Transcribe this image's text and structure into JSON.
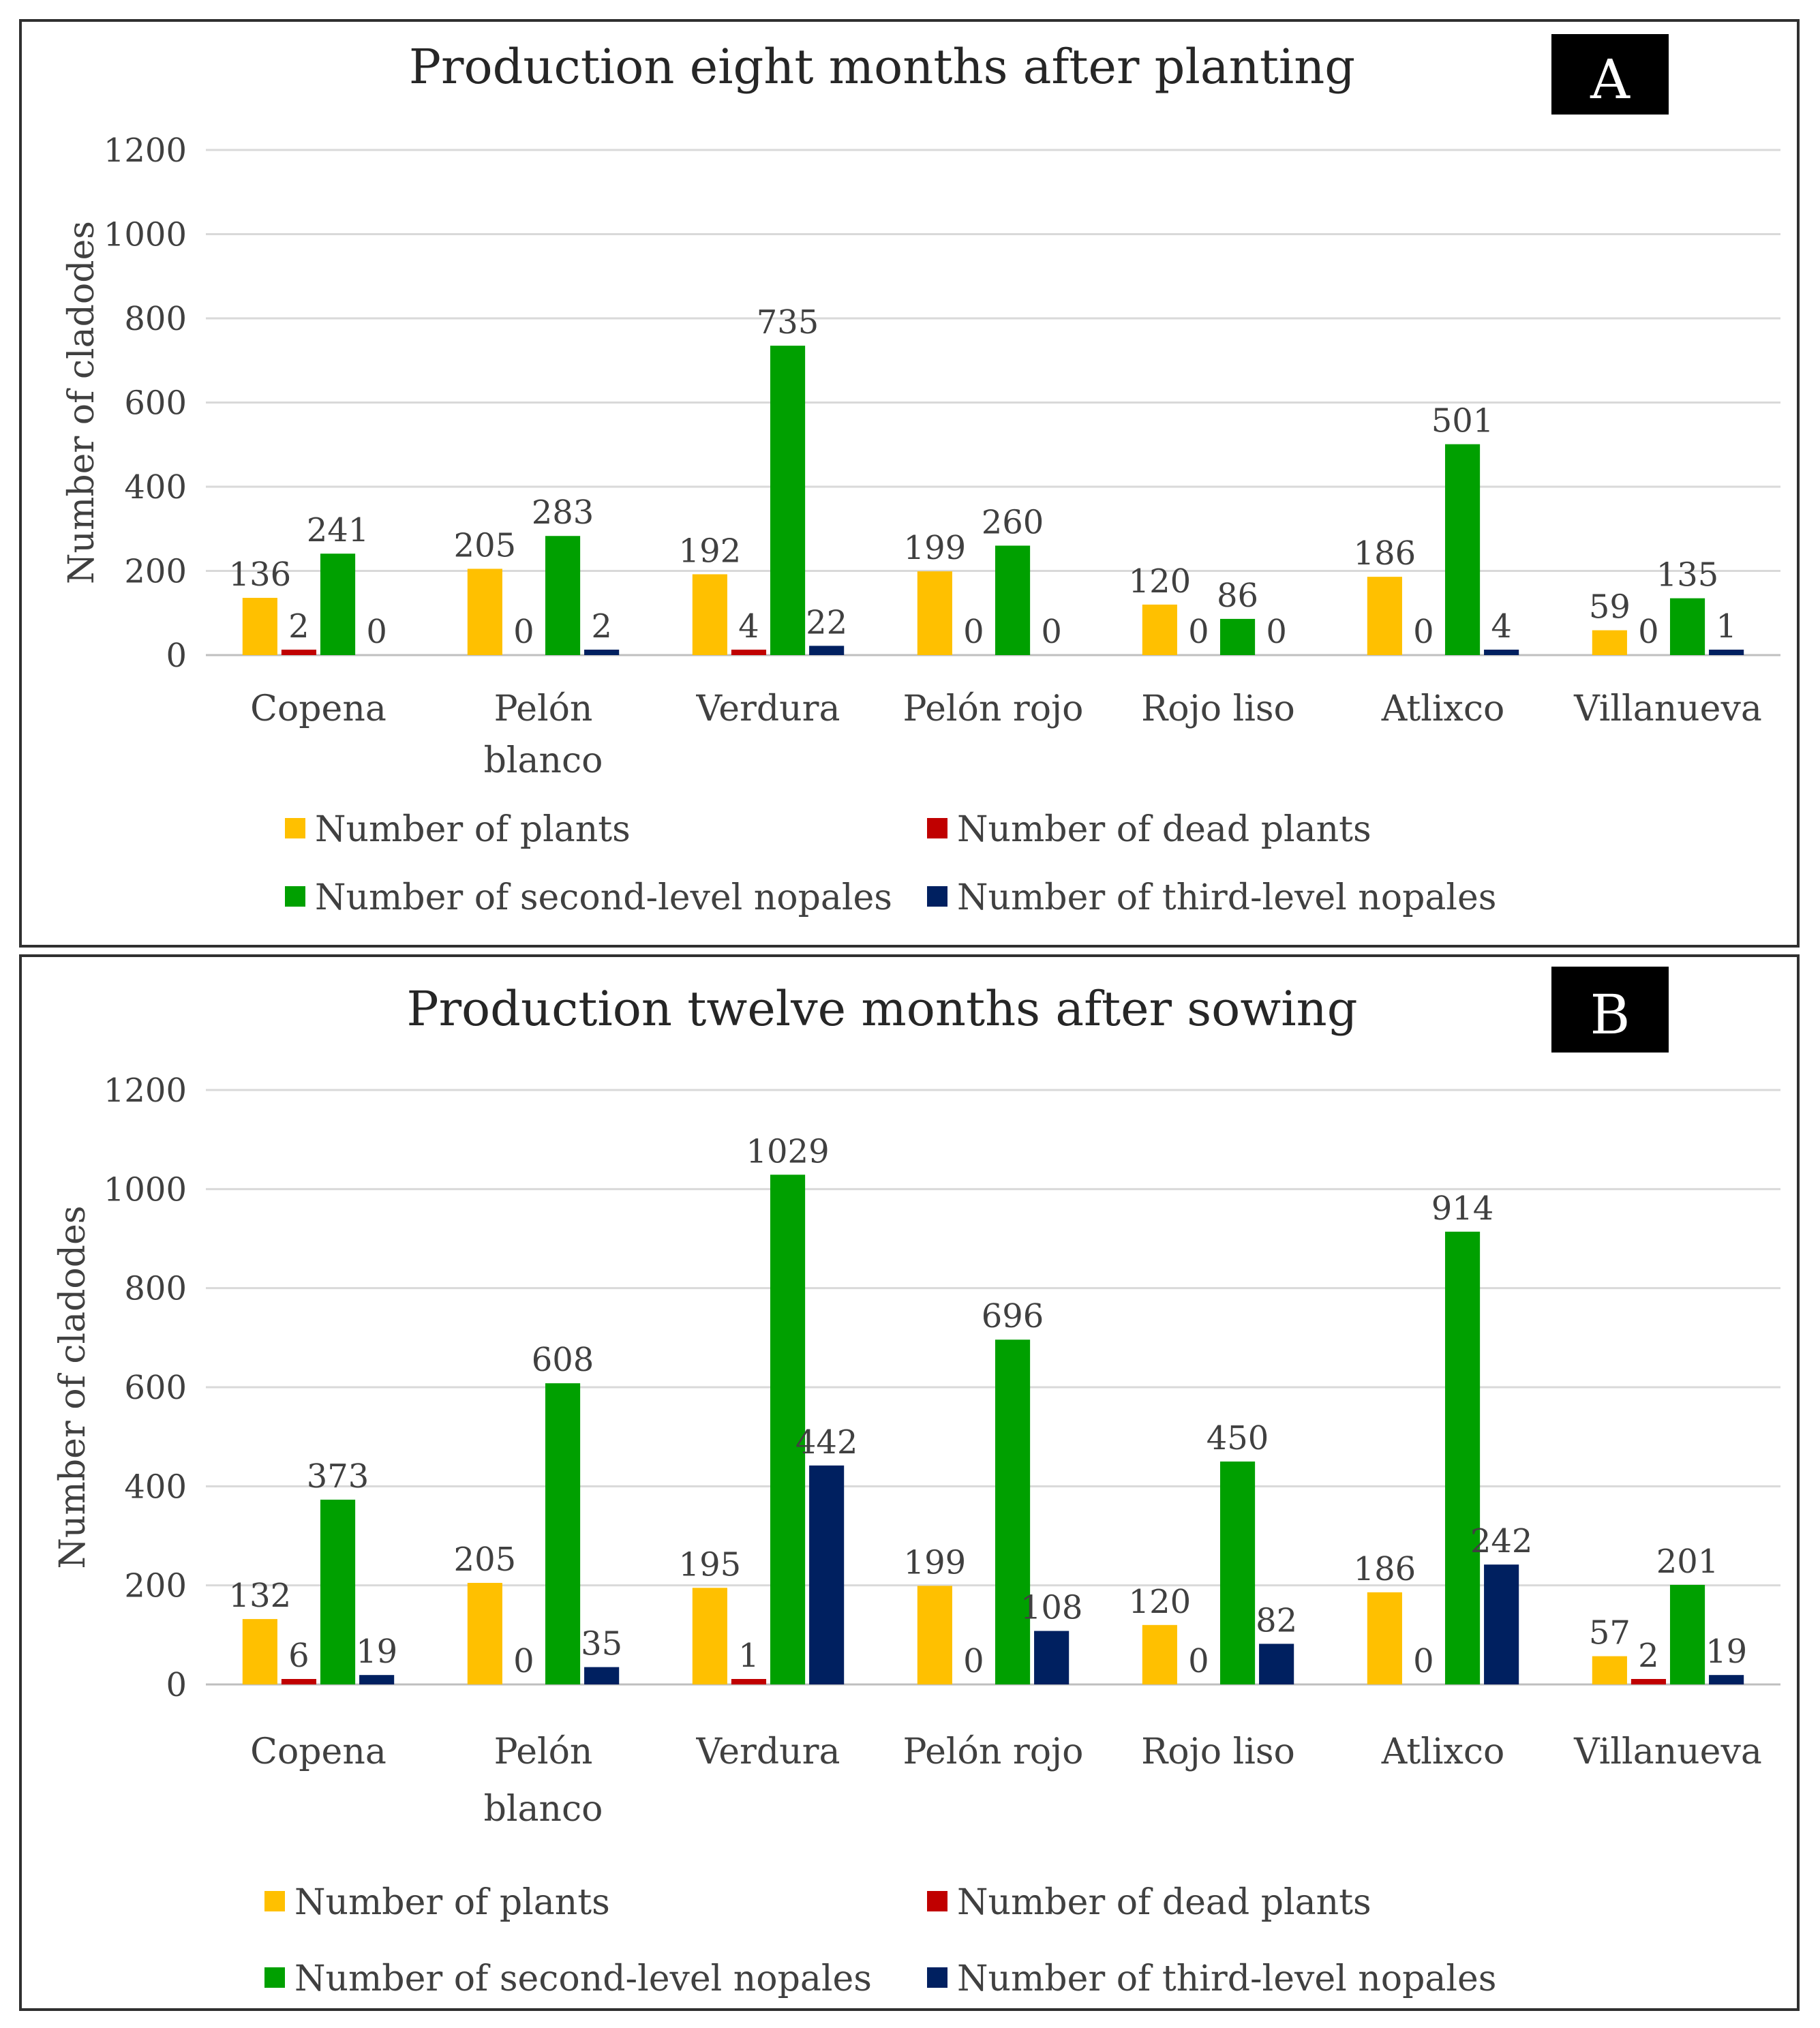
{
  "colors": {
    "plants": "#ffc000",
    "dead": "#c00000",
    "second": "#00a000",
    "third": "#002060"
  },
  "chart_data": [
    {
      "type": "bar",
      "panel": "A",
      "title": "Production eight months after planting",
      "ylabel": "Number of cladodes",
      "xlabel": "",
      "ylim": [
        0,
        1200
      ],
      "yticks": [
        0,
        200,
        400,
        600,
        800,
        1000,
        1200
      ],
      "grid": true,
      "legend_position": "bottom",
      "categories": [
        [
          "Copena"
        ],
        [
          "Pelón",
          "blanco"
        ],
        [
          "Verdura"
        ],
        [
          "Pelón rojo"
        ],
        [
          "Rojo liso"
        ],
        [
          "Atlixco"
        ],
        [
          "Villanueva"
        ]
      ],
      "series": [
        {
          "key": "plants",
          "name": "Number of plants",
          "values": [
            136,
            205,
            192,
            199,
            120,
            186,
            59
          ]
        },
        {
          "key": "dead",
          "name": "Number of dead plants",
          "values": [
            2,
            0,
            4,
            0,
            0,
            0,
            0
          ]
        },
        {
          "key": "second",
          "name": "Number of second-level nopales",
          "values": [
            241,
            283,
            735,
            260,
            86,
            501,
            135
          ]
        },
        {
          "key": "third",
          "name": "Number of third-level nopales",
          "values": [
            0,
            2,
            22,
            0,
            0,
            4,
            1
          ]
        }
      ]
    },
    {
      "type": "bar",
      "panel": "B",
      "title": "Production twelve months after sowing",
      "ylabel": "Number of cladodes",
      "xlabel": "",
      "ylim": [
        0,
        1200
      ],
      "yticks": [
        0,
        200,
        400,
        600,
        800,
        1000,
        1200
      ],
      "grid": true,
      "legend_position": "bottom",
      "categories": [
        [
          "Copena"
        ],
        [
          "Pelón",
          "blanco"
        ],
        [
          "Verdura"
        ],
        [
          "Pelón rojo"
        ],
        [
          "Rojo liso"
        ],
        [
          "Atlixco"
        ],
        [
          "Villanueva"
        ]
      ],
      "series": [
        {
          "key": "plants",
          "name": "Number of plants",
          "values": [
            132,
            205,
            195,
            199,
            120,
            186,
            57
          ]
        },
        {
          "key": "dead",
          "name": "Number of dead plants",
          "values": [
            6,
            0,
            1,
            0,
            0,
            0,
            2
          ]
        },
        {
          "key": "second",
          "name": "Number of second-level nopales",
          "values": [
            373,
            608,
            1029,
            696,
            450,
            914,
            201
          ]
        },
        {
          "key": "third",
          "name": "Number of third-level nopales",
          "values": [
            19,
            35,
            442,
            108,
            82,
            242,
            19
          ]
        }
      ]
    }
  ]
}
